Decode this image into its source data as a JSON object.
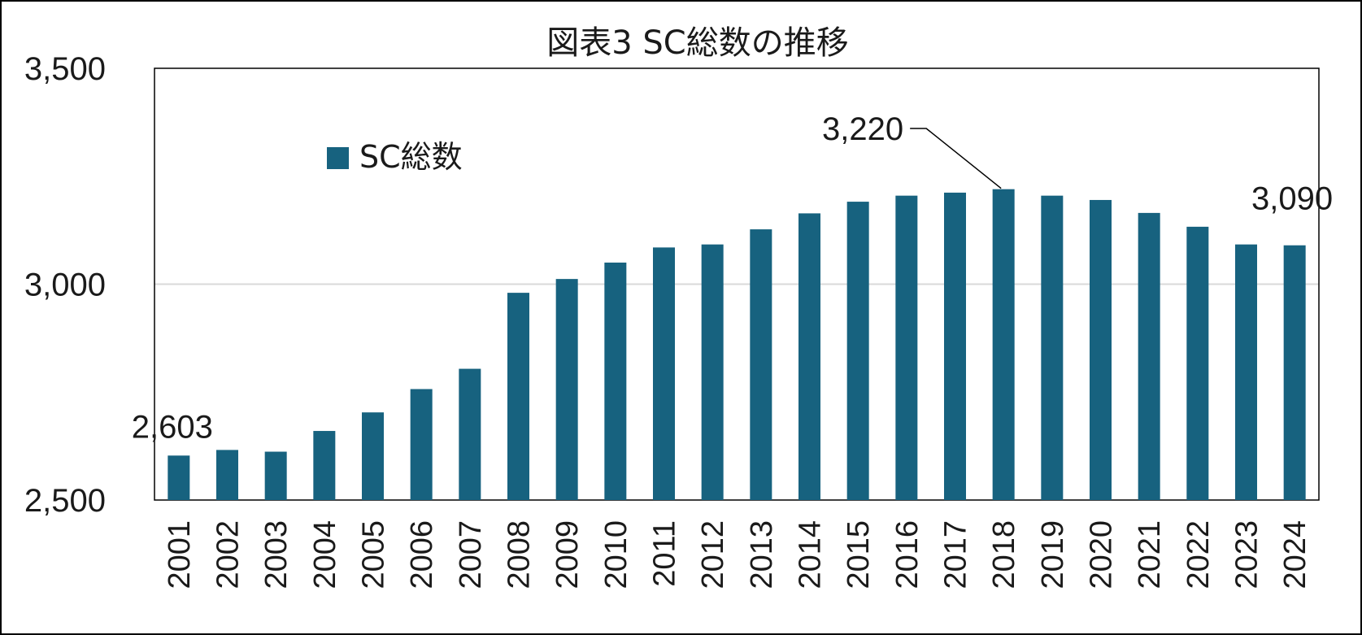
{
  "chart_data": {
    "type": "bar",
    "title": "図表3 SC総数の推移",
    "categories": [
      "2001",
      "2002",
      "2003",
      "2004",
      "2005",
      "2006",
      "2007",
      "2008",
      "2009",
      "2010",
      "2011",
      "2012",
      "2013",
      "2014",
      "2015",
      "2016",
      "2017",
      "2018",
      "2019",
      "2020",
      "2021",
      "2022",
      "2023",
      "2024"
    ],
    "series": [
      {
        "name": "SC総数",
        "color": "#17627f",
        "values": [
          2603,
          2616,
          2612,
          2660,
          2703,
          2757,
          2804,
          2980,
          3012,
          3050,
          3085,
          3092,
          3127,
          3164,
          3191,
          3205,
          3212,
          3220,
          3205,
          3195,
          3165,
          3133,
          3092,
          3090
        ]
      }
    ],
    "ylim": [
      2500,
      3500
    ],
    "yticks": [
      2500,
      3000,
      3500
    ],
    "ytick_labels": [
      "2,500",
      "3,000",
      "3,500"
    ],
    "xlabel": "",
    "ylabel": "",
    "grid": true,
    "legend": {
      "position": "top-left-inside",
      "label": "SC総数"
    },
    "annotations": [
      {
        "category": "2001",
        "text": "2,603"
      },
      {
        "category": "2018",
        "text": "3,220",
        "leader_line": true
      },
      {
        "category": "2024",
        "text": "3,090"
      }
    ]
  }
}
